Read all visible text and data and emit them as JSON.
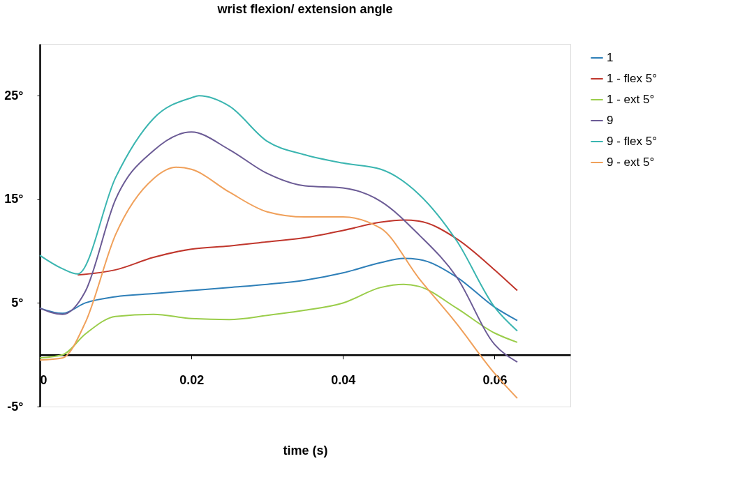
{
  "chart_data": {
    "type": "line",
    "title": "wrist flexion/ extension angle",
    "xlabel": "time (s)",
    "xlim": [
      0,
      0.07
    ],
    "ylim": [
      -5,
      30
    ],
    "xticks": [
      0,
      0.02,
      0.04,
      0.06
    ],
    "yticks": [
      {
        "value": -5,
        "label": "-5°"
      },
      {
        "value": 5,
        "label": "5°"
      },
      {
        "value": 15,
        "label": "15°"
      },
      {
        "value": 25,
        "label": "25°"
      }
    ],
    "grid": false,
    "legend": "right",
    "marker": "none",
    "line_style": "solid",
    "series": [
      {
        "name": "1",
        "color": "#2e7fb8",
        "x": [
          0,
          0.003,
          0.006,
          0.01,
          0.015,
          0.02,
          0.025,
          0.03,
          0.035,
          0.04,
          0.045,
          0.048,
          0.05,
          0.055,
          0.06,
          0.063
        ],
        "values": [
          4.5,
          4.0,
          5.0,
          5.6,
          5.9,
          6.2,
          6.5,
          6.8,
          7.2,
          7.9,
          8.9,
          9.3,
          9.2,
          7.5,
          4.6,
          3.3
        ]
      },
      {
        "name": "1 - flex 5°",
        "color": "#c0362c",
        "x": [
          0.005,
          0.01,
          0.015,
          0.02,
          0.025,
          0.03,
          0.035,
          0.04,
          0.045,
          0.048,
          0.05,
          0.055,
          0.06,
          0.063
        ],
        "values": [
          7.7,
          8.2,
          9.4,
          10.2,
          10.5,
          10.9,
          11.3,
          12.0,
          12.8,
          13.0,
          12.9,
          11.2,
          8.2,
          6.2
        ]
      },
      {
        "name": "1 - ext 5°",
        "color": "#9acd4a",
        "x": [
          0,
          0.003,
          0.006,
          0.01,
          0.015,
          0.02,
          0.025,
          0.03,
          0.035,
          0.04,
          0.045,
          0.048,
          0.05,
          0.055,
          0.06,
          0.063
        ],
        "values": [
          -0.3,
          0,
          2.0,
          3.7,
          3.9,
          3.5,
          3.4,
          3.8,
          4.3,
          5.0,
          6.5,
          6.8,
          6.6,
          4.5,
          2.1,
          1.2
        ]
      },
      {
        "name": "9",
        "color": "#6b5b95",
        "x": [
          0,
          0.003,
          0.006,
          0.01,
          0.015,
          0.02,
          0.025,
          0.03,
          0.035,
          0.04,
          0.045,
          0.05,
          0.055,
          0.06,
          0.063
        ],
        "values": [
          4.5,
          3.9,
          6.1,
          15.0,
          19.7,
          21.5,
          19.8,
          17.5,
          16.3,
          16.1,
          14.8,
          11.6,
          7.5,
          1.0,
          -0.7
        ]
      },
      {
        "name": "9 - flex 5°",
        "color": "#3ab5b0",
        "x": [
          0,
          0.003,
          0.005,
          0.01,
          0.015,
          0.02,
          0.021,
          0.025,
          0.03,
          0.035,
          0.04,
          0.045,
          0.05,
          0.055,
          0.06,
          0.063
        ],
        "values": [
          9.6,
          8.3,
          7.8,
          17.1,
          22.8,
          24.8,
          25.0,
          24.0,
          20.6,
          19.3,
          18.5,
          17.9,
          15.5,
          11.0,
          4.6,
          2.3
        ]
      },
      {
        "name": "9 - ext 5°",
        "color": "#f0a05a",
        "x": [
          0,
          0.003,
          0.006,
          0.01,
          0.015,
          0.018,
          0.02,
          0.025,
          0.03,
          0.035,
          0.04,
          0.045,
          0.05,
          0.055,
          0.06,
          0.063
        ],
        "values": [
          -0.5,
          -0.3,
          3.1,
          11.6,
          17.0,
          18.1,
          17.9,
          15.7,
          13.8,
          13.3,
          13.3,
          12.2,
          7.4,
          3.0,
          -1.8,
          -4.2
        ]
      }
    ]
  }
}
